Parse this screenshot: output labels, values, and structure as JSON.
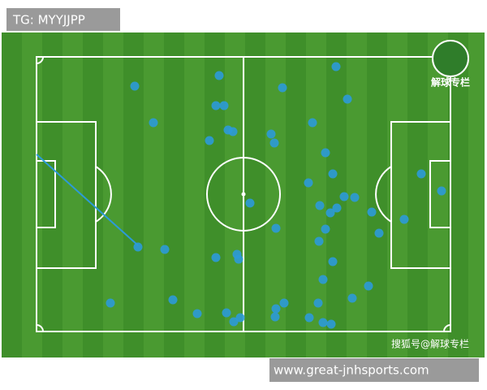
{
  "header": {
    "tag": "TG: MYYJJPP"
  },
  "logo": {
    "label": "解球专栏"
  },
  "footer": {
    "credit": "搜狐号@解球专栏",
    "site": "www.great-jnhsports.com"
  }
}
